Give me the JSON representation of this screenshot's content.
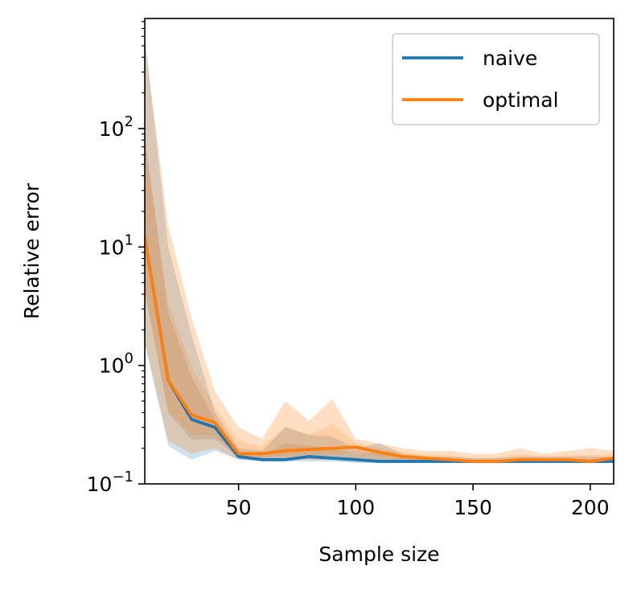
{
  "chart_data": {
    "type": "line",
    "xlabel": "Sample size",
    "ylabel": "Relative error",
    "xlim": [
      10,
      210
    ],
    "ylim": [
      0.1,
      850
    ],
    "yscale": "log",
    "grid": false,
    "legend_position": "top-right",
    "x_ticks": [
      {
        "value": 50,
        "label": "50"
      },
      {
        "value": 100,
        "label": "100"
      },
      {
        "value": 150,
        "label": "150"
      },
      {
        "value": 200,
        "label": "200"
      }
    ],
    "y_ticks": [
      {
        "value": 0.1,
        "base": "10",
        "exp": "−1"
      },
      {
        "value": 1,
        "base": "10",
        "exp": "0"
      },
      {
        "value": 10,
        "base": "10",
        "exp": "1"
      },
      {
        "value": 100,
        "base": "10",
        "exp": "2"
      }
    ],
    "x": [
      10,
      20,
      30,
      40,
      50,
      60,
      70,
      80,
      90,
      100,
      110,
      120,
      130,
      140,
      150,
      160,
      170,
      180,
      190,
      200,
      210
    ],
    "series": [
      {
        "name": "naive",
        "color": "#1f77b4",
        "values": [
          12,
          0.75,
          0.35,
          0.3,
          0.17,
          0.16,
          0.16,
          0.17,
          0.165,
          0.16,
          0.155,
          0.155,
          0.155,
          0.155,
          0.155,
          0.155,
          0.155,
          0.155,
          0.155,
          0.155,
          0.155
        ],
        "band_lower": [
          1.5,
          0.21,
          0.16,
          0.19,
          0.16,
          0.155,
          0.155,
          0.155,
          0.155,
          0.15,
          0.15,
          0.15,
          0.15,
          0.15,
          0.15,
          0.15,
          0.15,
          0.15,
          0.15,
          0.15,
          0.15
        ],
        "band_upper": [
          600,
          10,
          1.8,
          0.4,
          0.2,
          0.19,
          0.3,
          0.26,
          0.25,
          0.2,
          0.22,
          0.18,
          0.17,
          0.17,
          0.165,
          0.165,
          0.17,
          0.17,
          0.17,
          0.17,
          0.17
        ]
      },
      {
        "name": "optimal",
        "color": "#ff7f0e",
        "values": [
          12,
          0.75,
          0.38,
          0.33,
          0.18,
          0.18,
          0.19,
          0.195,
          0.2,
          0.205,
          0.185,
          0.17,
          0.165,
          0.16,
          0.155,
          0.155,
          0.16,
          0.16,
          0.16,
          0.155,
          0.165
        ],
        "band_lower": [
          1.6,
          0.23,
          0.18,
          0.2,
          0.16,
          0.16,
          0.16,
          0.16,
          0.16,
          0.16,
          0.16,
          0.155,
          0.155,
          0.155,
          0.15,
          0.15,
          0.155,
          0.155,
          0.155,
          0.15,
          0.155
        ],
        "band_upper": [
          550,
          15,
          2.5,
          0.6,
          0.3,
          0.24,
          0.5,
          0.34,
          0.52,
          0.24,
          0.22,
          0.2,
          0.19,
          0.19,
          0.18,
          0.18,
          0.2,
          0.18,
          0.19,
          0.2,
          0.19
        ]
      }
    ]
  }
}
